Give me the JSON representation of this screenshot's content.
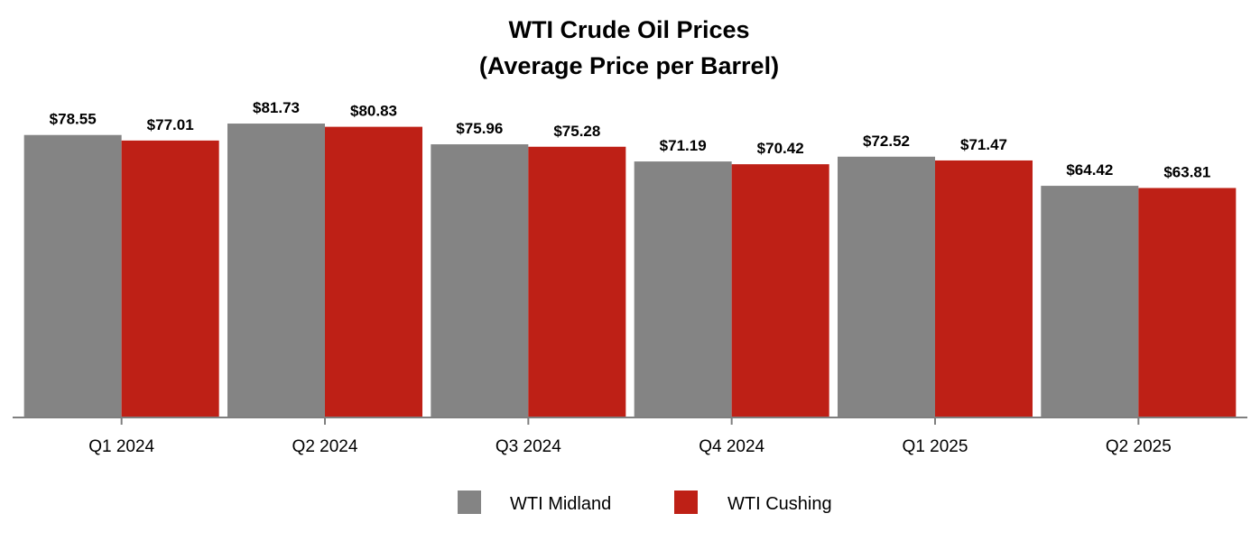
{
  "chart_data": {
    "type": "bar",
    "title": "WTI Crude Oil Prices",
    "subtitle": "(Average Price per Barrel)",
    "categories": [
      "Q1 2024",
      "Q2 2024",
      "Q3 2024",
      "Q4 2024",
      "Q1 2025",
      "Q2 2025"
    ],
    "series": [
      {
        "name": "WTI Midland",
        "color": "#848484",
        "values": [
          78.55,
          81.73,
          75.96,
          71.19,
          72.52,
          64.42
        ],
        "labels": [
          "$78.55",
          "$81.73",
          "$75.96",
          "$71.19",
          "$72.52",
          "$64.42"
        ]
      },
      {
        "name": "WTI Cushing",
        "color": "#BE2016",
        "values": [
          77.01,
          80.83,
          75.28,
          70.42,
          71.47,
          63.81
        ],
        "labels": [
          "$77.01",
          "$80.83",
          "$75.28",
          "$70.42",
          "$71.47",
          "$63.81"
        ]
      }
    ],
    "xlabel": "",
    "ylabel": "",
    "ylim": [
      0,
      86
    ],
    "grid": false,
    "legend": "bottom-center"
  }
}
